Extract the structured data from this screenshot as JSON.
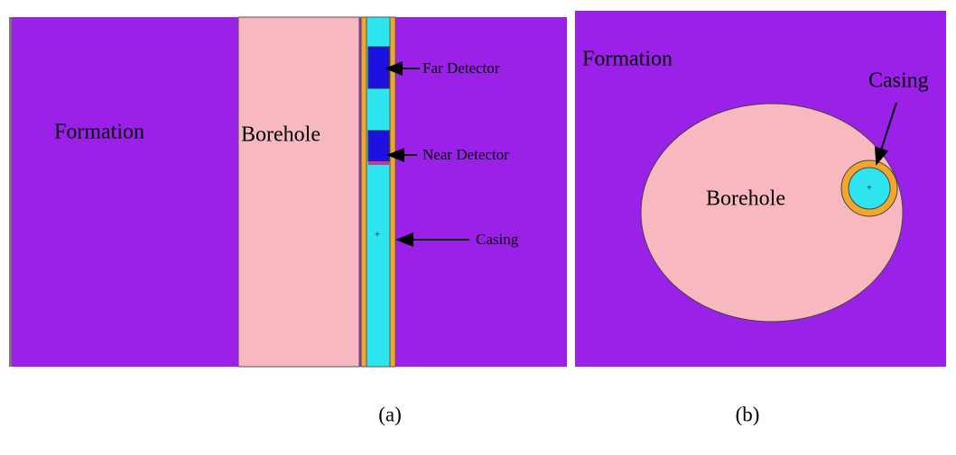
{
  "panel_a": {
    "formation": "Formation",
    "borehole": "Borehole",
    "far_detector": "Far Detector",
    "near_detector": "Near Detector",
    "casing": "Casing",
    "caption": "(a)"
  },
  "panel_b": {
    "formation": "Formation",
    "borehole": "Borehole",
    "casing": "Casing",
    "caption": "(b)"
  }
}
